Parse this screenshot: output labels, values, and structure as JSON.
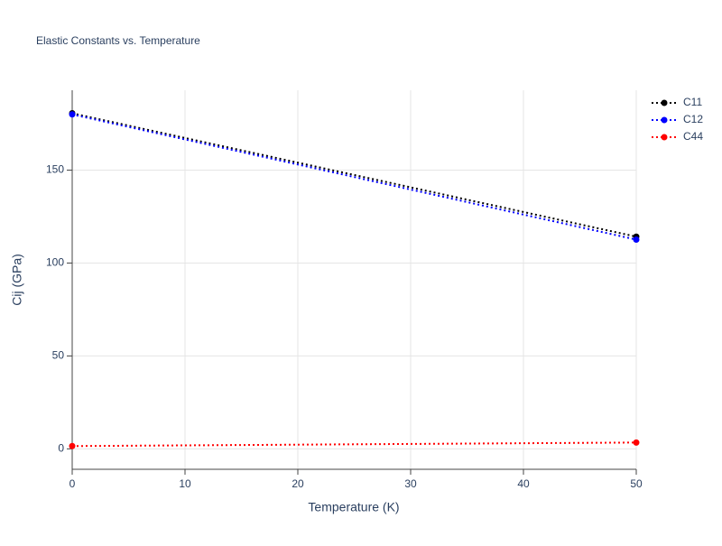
{
  "chart_data": {
    "type": "line",
    "title": "Elastic Constants vs. Temperature",
    "x_label": "Temperature (K)",
    "y_label": "Cij (GPa)",
    "x": [
      0,
      50
    ],
    "series": [
      {
        "name": "C11",
        "color": "#000000",
        "values": [
          180.6,
          114.2
        ]
      },
      {
        "name": "C12",
        "color": "#0000ff",
        "values": [
          180.0,
          112.6
        ]
      },
      {
        "name": "C44",
        "color": "#ff0000",
        "values": [
          1.5,
          3.4
        ]
      }
    ],
    "xlim": [
      0,
      50
    ],
    "xticks": [
      0,
      10,
      20,
      30,
      40,
      50
    ],
    "ylim": [
      -11,
      193
    ],
    "yticks": [
      0,
      50,
      100,
      150
    ],
    "grid": true,
    "legend": "top-right"
  }
}
